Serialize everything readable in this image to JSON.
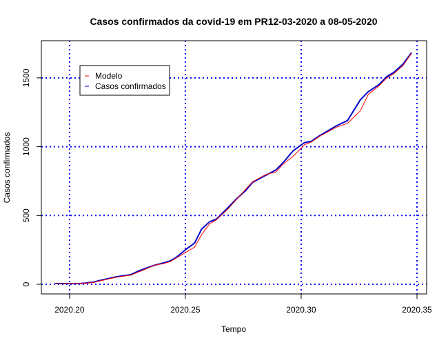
{
  "chart_data": {
    "type": "line",
    "title": "Casos confirmados da covid-19 em PR12-03-2020 a 08-05-2020",
    "xlabel": "Tempo",
    "ylabel": "Casos confirmados",
    "xlim": [
      2020.192,
      2020.35
    ],
    "ylim": [
      0,
      1700
    ],
    "x_ticks": [
      2020.2,
      2020.25,
      2020.3,
      2020.35
    ],
    "x_tick_labels": [
      "2020.20",
      "2020.25",
      "2020.30",
      "2020.35"
    ],
    "y_ticks": [
      0,
      500,
      1000,
      1500
    ],
    "y_tick_labels": [
      "0",
      "500",
      "1000",
      "1500"
    ],
    "grid": true,
    "grid_color": "#0000ff",
    "legend_position": "top-left",
    "series": [
      {
        "name": "Casos confirmados",
        "color": "#0000cc",
        "x": [
          2020.194,
          2020.2045,
          2020.21,
          2020.215,
          2020.2205,
          2020.2265,
          2020.2295,
          2020.2335,
          2020.237,
          2020.2405,
          2020.2435,
          2020.246,
          2020.25,
          2020.254,
          2020.257,
          2020.2605,
          2020.2635,
          2020.268,
          2020.272,
          2020.276,
          2020.279,
          2020.285,
          2020.289,
          2020.292,
          2020.2965,
          2020.3015,
          2020.3045,
          2020.308,
          2020.315,
          2020.32,
          2020.3255,
          2020.329,
          2020.3335,
          2020.337,
          2020.34,
          2020.344,
          2020.3475
        ],
        "y": [
          5,
          5,
          15,
          35,
          55,
          70,
          95,
          120,
          140,
          155,
          170,
          195,
          250,
          300,
          400,
          455,
          475,
          550,
          620,
          680,
          740,
          795,
          830,
          880,
          970,
          1030,
          1040,
          1080,
          1150,
          1190,
          1340,
          1400,
          1450,
          1510,
          1540,
          1600,
          1680
        ]
      },
      {
        "name": "Modelo",
        "color": "#ff0000",
        "x": [
          2020.194,
          2020.2045,
          2020.21,
          2020.215,
          2020.2205,
          2020.2265,
          2020.2295,
          2020.2335,
          2020.237,
          2020.2405,
          2020.2435,
          2020.246,
          2020.25,
          2020.254,
          2020.257,
          2020.2605,
          2020.2635,
          2020.268,
          2020.272,
          2020.276,
          2020.279,
          2020.285,
          2020.289,
          2020.292,
          2020.2965,
          2020.3015,
          2020.3045,
          2020.308,
          2020.315,
          2020.32,
          2020.3255,
          2020.329,
          2020.3335,
          2020.337,
          2020.34,
          2020.344,
          2020.3475
        ],
        "y": [
          3,
          6,
          12,
          32,
          52,
          66,
          88,
          115,
          140,
          150,
          165,
          190,
          230,
          270,
          360,
          440,
          470,
          540,
          615,
          690,
          745,
          800,
          815,
          870,
          930,
          1015,
          1035,
          1075,
          1140,
          1170,
          1260,
          1380,
          1440,
          1500,
          1530,
          1590,
          1675
        ]
      }
    ]
  }
}
